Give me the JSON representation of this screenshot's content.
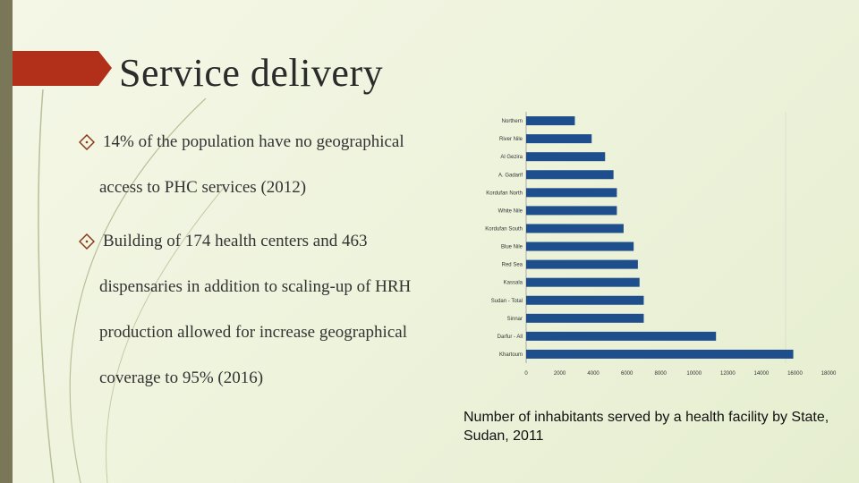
{
  "title": "Service delivery",
  "bullets": [
    [
      "14% of the population have no geographical",
      "access to PHC services (2012)"
    ],
    [
      "Building of 174 health centers and 463",
      "dispensaries in addition to scaling-up of HRH",
      "production allowed for increase geographical",
      "coverage to 95% (2016)"
    ]
  ],
  "chart_data": {
    "type": "bar",
    "orientation": "horizontal",
    "caption": "Number of inhabitants served by a health facility by State, Sudan, 2011",
    "categories": [
      "Northern",
      "River Nile",
      "Al Gezira",
      "A. Gadarif",
      "Kordufan North",
      "White Nile",
      "Kordufan South",
      "Blue Nile",
      "Red Sea",
      "Kassala",
      "Sudan - Total",
      "Sinnar",
      "Darfur - All",
      "Khartoum"
    ],
    "values": [
      2900,
      3900,
      4700,
      5200,
      5400,
      5400,
      5800,
      6400,
      6650,
      6750,
      7000,
      7000,
      11300,
      15900
    ],
    "color": "#1f4e8c",
    "xlim": [
      0,
      18000
    ],
    "xticks": [
      0,
      2000,
      4000,
      6000,
      8000,
      10000,
      12000,
      14000,
      16000,
      18000
    ],
    "grid": false
  }
}
